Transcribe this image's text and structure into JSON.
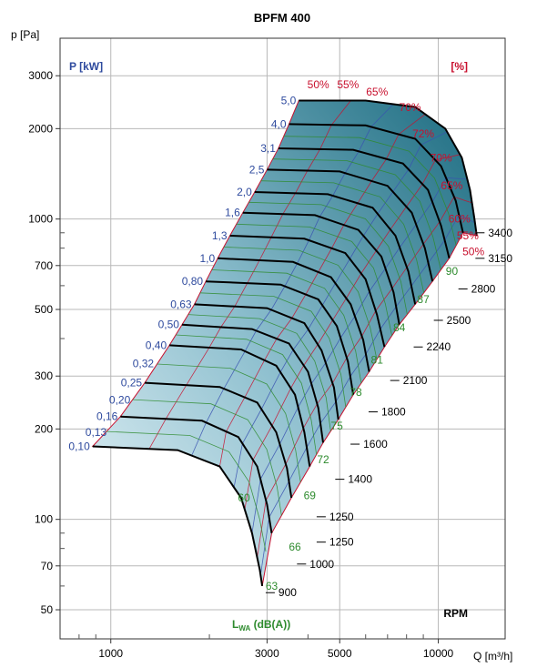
{
  "chart_data": {
    "type": "fan-curve",
    "title": "BPFM 400",
    "y_axis_label": "p [Pa]",
    "x_axis_label": "Q [m³/h]",
    "x_scale": "log",
    "y_scale": "log",
    "xlim": [
      700,
      16000
    ],
    "ylim": [
      40,
      4000
    ],
    "grid": true,
    "x_ticks": [
      1000,
      3000,
      5000,
      10000
    ],
    "x_tick_labels": [
      "1000",
      "3000",
      "5000",
      "10000"
    ],
    "y_ticks": [
      50,
      70,
      100,
      200,
      300,
      500,
      700,
      1000,
      2000,
      3000
    ],
    "y_tick_labels": [
      "50",
      "70",
      "100",
      "200",
      "300",
      "500",
      "700",
      "1000",
      "2000",
      "3000"
    ],
    "power_header": "P [kW]",
    "power_color": "#2e4a9e",
    "efficiency_header": "[%]",
    "efficiency_color": "#c8102e",
    "noise_header": "L",
    "noise_header_sub": "WA",
    "noise_header_suffix": " (dB(A))",
    "noise_color": "#2e8b2e",
    "rpm_header": "RPM",
    "power_labels": [
      {
        "text": "5,0",
        "q": 3750,
        "p": 2480
      },
      {
        "text": "4,0",
        "q": 3500,
        "p": 2070
      },
      {
        "text": "3,1",
        "q": 3250,
        "p": 1720
      },
      {
        "text": "2,5",
        "q": 3000,
        "p": 1460
      },
      {
        "text": "2,0",
        "q": 2750,
        "p": 1230
      },
      {
        "text": "1,6",
        "q": 2530,
        "p": 1050
      },
      {
        "text": "1,3",
        "q": 2310,
        "p": 880
      },
      {
        "text": "1,0",
        "q": 2120,
        "p": 740
      },
      {
        "text": "0,80",
        "q": 1950,
        "p": 620
      },
      {
        "text": "0,63",
        "q": 1800,
        "p": 520
      },
      {
        "text": "0,50",
        "q": 1650,
        "p": 445
      },
      {
        "text": "0,40",
        "q": 1510,
        "p": 380
      },
      {
        "text": "0,32",
        "q": 1380,
        "p": 330
      },
      {
        "text": "0,25",
        "q": 1270,
        "p": 285
      },
      {
        "text": "0,20",
        "q": 1170,
        "p": 250
      },
      {
        "text": "0,16",
        "q": 1070,
        "p": 220
      },
      {
        "text": "0,13",
        "q": 990,
        "p": 195
      },
      {
        "text": "0,10",
        "q": 880,
        "p": 175
      }
    ],
    "efficiency_labels": [
      {
        "text": "50%",
        "q": 4300,
        "p": 2800
      },
      {
        "text": "55%",
        "q": 5300,
        "p": 2800
      },
      {
        "text": "65%",
        "q": 6500,
        "p": 2650
      },
      {
        "text": "70%",
        "q": 8200,
        "p": 2350
      },
      {
        "text": "72%",
        "q": 9000,
        "p": 1920
      },
      {
        "text": "70%",
        "q": 10200,
        "p": 1600
      },
      {
        "text": "65%",
        "q": 11000,
        "p": 1290
      },
      {
        "text": "60%",
        "q": 11600,
        "p": 1000
      },
      {
        "text": "55%",
        "q": 12300,
        "p": 880
      },
      {
        "text": "50%",
        "q": 12800,
        "p": 780
      }
    ],
    "noise_labels": [
      {
        "text": "90",
        "q": 11000,
        "p": 670
      },
      {
        "text": "87",
        "q": 9000,
        "p": 540
      },
      {
        "text": "84",
        "q": 7600,
        "p": 435
      },
      {
        "text": "81",
        "q": 6500,
        "p": 340
      },
      {
        "text": "78",
        "q": 5600,
        "p": 265
      },
      {
        "text": "75",
        "q": 4900,
        "p": 205
      },
      {
        "text": "72",
        "q": 4450,
        "p": 158
      },
      {
        "text": "69",
        "q": 4050,
        "p": 120
      },
      {
        "text": "66",
        "q": 3650,
        "p": 81
      },
      {
        "text": "63",
        "q": 3100,
        "p": 60
      },
      {
        "text": "60",
        "q": 2550,
        "p": 118
      }
    ],
    "rpm_labels": [
      {
        "text": "3400",
        "q": 14200,
        "p": 900
      },
      {
        "text": "3150",
        "q": 14200,
        "p": 740
      },
      {
        "text": "2800",
        "q": 12600,
        "p": 585
      },
      {
        "text": "2500",
        "q": 10600,
        "p": 460
      },
      {
        "text": "2240",
        "q": 9200,
        "p": 375
      },
      {
        "text": "2100",
        "q": 7800,
        "p": 290
      },
      {
        "text": "1800",
        "q": 6700,
        "p": 228
      },
      {
        "text": "1600",
        "q": 5900,
        "p": 178
      },
      {
        "text": "1400",
        "q": 5300,
        "p": 136
      },
      {
        "text": "1250",
        "q": 4650,
        "p": 102
      },
      {
        "text": "1250",
        "q": 4650,
        "p": 84
      },
      {
        "text": "1000",
        "q": 4050,
        "p": 71
      },
      {
        "text": "900",
        "q": 3250,
        "p": 57
      }
    ],
    "rpm_curves": [
      {
        "q": [
          3750,
          6000,
          8500,
          10500,
          11800,
          12500,
          12900,
          13100
        ],
        "p": [
          2480,
          2480,
          2360,
          2000,
          1600,
          1250,
          1000,
          880
        ]
      },
      {
        "q": [
          3500,
          6000,
          8500,
          10200,
          11300,
          11900
        ],
        "p": [
          2070,
          2050,
          1850,
          1500,
          1150,
          900
        ]
      },
      {
        "q": [
          3250,
          5500,
          7800,
          9300,
          10200,
          10800
        ],
        "p": [
          1720,
          1700,
          1530,
          1250,
          950,
          740
        ]
      },
      {
        "q": [
          3000,
          5000,
          7000,
          8300,
          9100,
          9600
        ],
        "p": [
          1460,
          1440,
          1290,
          1050,
          800,
          620
        ]
      },
      {
        "q": [
          2750,
          4600,
          6300,
          7400,
          8100,
          8500
        ],
        "p": [
          1230,
          1210,
          1090,
          880,
          670,
          520
        ]
      },
      {
        "q": [
          2530,
          4200,
          5700,
          6700,
          7300,
          7600
        ],
        "p": [
          1050,
          1030,
          920,
          750,
          570,
          445
        ]
      },
      {
        "q": [
          2310,
          3900,
          5200,
          6000,
          6500,
          6850
        ],
        "p": [
          880,
          860,
          770,
          630,
          480,
          375
        ]
      },
      {
        "q": [
          2120,
          3600,
          4700,
          5400,
          5900,
          6150
        ],
        "p": [
          740,
          720,
          640,
          520,
          395,
          310
        ]
      },
      {
        "q": [
          1950,
          3300,
          4300,
          4900,
          5300,
          5500
        ],
        "p": [
          620,
          605,
          540,
          440,
          335,
          260
        ]
      },
      {
        "q": [
          1800,
          3000,
          3900,
          4400,
          4800,
          4950
        ],
        "p": [
          520,
          505,
          450,
          365,
          275,
          215
        ]
      },
      {
        "q": [
          1650,
          2700,
          3500,
          4000,
          4300,
          4450
        ],
        "p": [
          445,
          430,
          385,
          310,
          235,
          180
        ]
      },
      {
        "q": [
          1510,
          2500,
          3200,
          3650,
          3900,
          4050
        ],
        "p": [
          380,
          368,
          325,
          260,
          195,
          150
        ]
      },
      {
        "q": [
          1270,
          2150,
          2800,
          3200,
          3450,
          3560
        ],
        "p": [
          285,
          276,
          245,
          195,
          148,
          118
        ]
      },
      {
        "q": [
          1070,
          1900,
          2450,
          2800,
          3000,
          3100
        ],
        "p": [
          220,
          213,
          188,
          150,
          112,
          90
        ]
      },
      {
        "q": [
          880,
          1600,
          2150,
          2500,
          2700,
          2850,
          2900
        ],
        "p": [
          175,
          170,
          150,
          118,
          90,
          68,
          60
        ]
      }
    ]
  }
}
